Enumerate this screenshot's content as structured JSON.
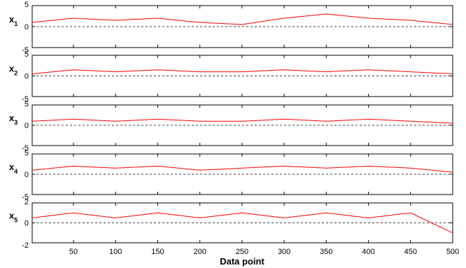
{
  "chart_data": {
    "type": "line",
    "xlabel": "Data point",
    "xlim": [
      1,
      500
    ],
    "xticks": [
      50,
      100,
      150,
      200,
      250,
      300,
      350,
      400,
      450,
      500
    ],
    "grid": false,
    "line_color": "#ff0000",
    "zero_line_color": "#000000",
    "panels": [
      {
        "ylabel": "x",
        "subscript": "1",
        "ylim": [
          -5,
          5
        ],
        "yticks": [
          -5,
          0,
          5
        ],
        "x": [
          1,
          50,
          100,
          150,
          200,
          250,
          300,
          350,
          400,
          450,
          500
        ],
        "y": [
          1.0,
          2.0,
          1.5,
          2.0,
          1.0,
          0.5,
          2.0,
          3.0,
          2.0,
          1.5,
          0.5
        ]
      },
      {
        "ylabel": "x",
        "subscript": "2",
        "ylim": [
          -5,
          5
        ],
        "yticks": [
          -5,
          0,
          5
        ],
        "x": [
          1,
          50,
          100,
          150,
          200,
          250,
          300,
          350,
          400,
          450,
          500
        ],
        "y": [
          0.5,
          1.5,
          1.0,
          1.5,
          1.0,
          1.0,
          1.5,
          1.0,
          1.5,
          1.0,
          0.5
        ]
      },
      {
        "ylabel": "x",
        "subscript": "3",
        "ylim": [
          -5,
          5
        ],
        "yticks": [
          -5,
          0,
          5
        ],
        "x": [
          1,
          50,
          100,
          150,
          200,
          250,
          300,
          350,
          400,
          450,
          500
        ],
        "y": [
          1.0,
          1.5,
          1.0,
          1.5,
          1.0,
          1.0,
          1.5,
          1.0,
          1.5,
          1.0,
          0.5
        ]
      },
      {
        "ylabel": "x",
        "subscript": "4",
        "ylim": [
          -5,
          5
        ],
        "yticks": [
          -5,
          0,
          5
        ],
        "x": [
          1,
          50,
          100,
          150,
          200,
          250,
          300,
          350,
          400,
          450,
          500
        ],
        "y": [
          1.0,
          2.0,
          1.5,
          2.0,
          1.0,
          1.5,
          2.0,
          1.5,
          2.0,
          1.5,
          0.5
        ]
      },
      {
        "ylabel": "x",
        "subscript": "5",
        "ylim": [
          -2,
          2
        ],
        "yticks": [
          -2,
          0,
          2
        ],
        "x": [
          1,
          50,
          100,
          150,
          200,
          250,
          300,
          350,
          400,
          450,
          500
        ],
        "y": [
          0.5,
          1.0,
          0.5,
          1.0,
          0.5,
          1.0,
          0.5,
          1.0,
          0.5,
          1.0,
          -1.0
        ]
      }
    ]
  }
}
